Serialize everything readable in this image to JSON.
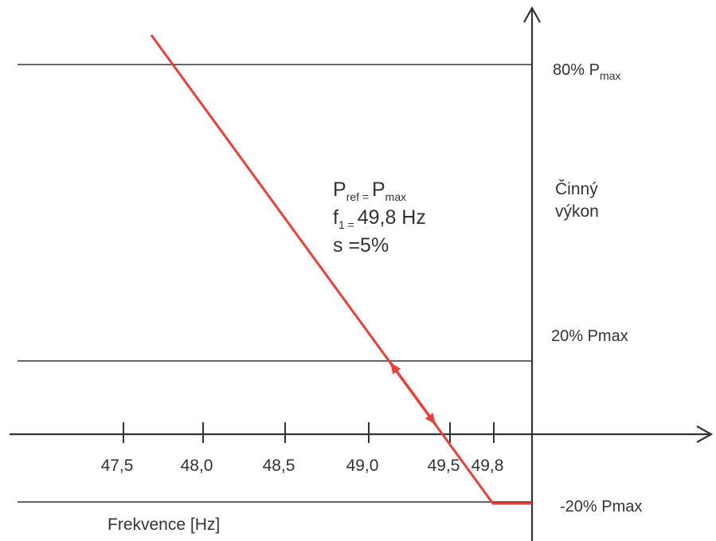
{
  "chart_data": {
    "type": "line",
    "xlabel": "Frekvence [Hz]",
    "ylabel": [
      "Činný",
      "výkon"
    ],
    "x_tick_labels": [
      "47,5",
      "48,0",
      "48,5",
      "49,0",
      "49,5",
      "49,8"
    ],
    "x_tick_values": [
      47.5,
      48.0,
      48.5,
      49.0,
      49.5,
      49.8
    ],
    "reference_levels": [
      {
        "value": 80,
        "label": "80% P",
        "sub": "max"
      },
      {
        "value": 20,
        "label": "20% Pmax",
        "sub": ""
      },
      {
        "value": -20,
        "label": "-20% Pmax",
        "sub": ""
      }
    ],
    "annotation": {
      "line1": {
        "main": "P",
        "sub": "ref = ",
        "main2": "P",
        "sub2": "max"
      },
      "line2": {
        "main": "f",
        "sub": "1 = ",
        "rest": "49,8 Hz"
      },
      "line3": "s =5%"
    },
    "series": [
      {
        "color": "#e8403a",
        "points": [
          [
            47.5,
            96
          ],
          [
            49.8,
            -20
          ],
          [
            50.0,
            -20
          ]
        ]
      }
    ],
    "double_arrow": {
      "color": "#e8403a",
      "from": [
        49.3,
        10
      ],
      "to": [
        49.55,
        -1
      ]
    },
    "ylim": [
      -20,
      96
    ],
    "grid": false
  }
}
